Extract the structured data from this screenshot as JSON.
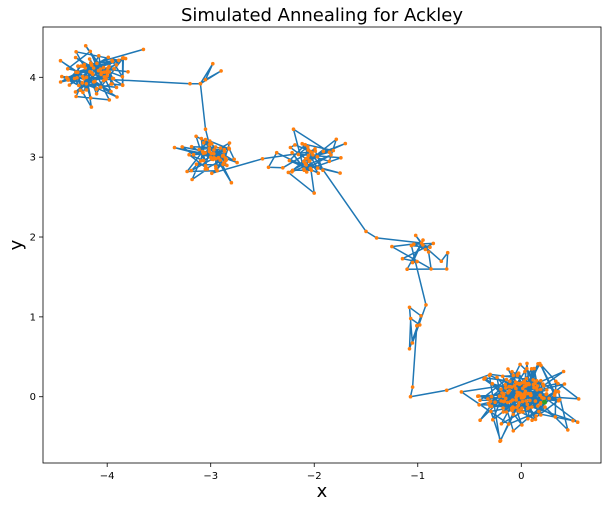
{
  "chart_data": {
    "type": "line",
    "title": "Simulated Annealing for Ackley",
    "xlabel": "x",
    "ylabel": "y",
    "xlim": [
      -4.62,
      0.77
    ],
    "ylim": [
      -0.83,
      4.63
    ],
    "xticks": [
      -4,
      -3,
      -2,
      -1,
      0
    ],
    "yticks": [
      0,
      1,
      2,
      3,
      4
    ],
    "xtick_labels": [
      "−4",
      "−3",
      "−2",
      "−1",
      "0"
    ],
    "ytick_labels": [
      "0",
      "1",
      "2",
      "3",
      "4"
    ],
    "grid": false,
    "line_color": "#1f77b4",
    "marker_color": "#ff7f0e",
    "final_marker_color": "#2ca02c",
    "clusters": [
      {
        "cx": -4.1,
        "cy": 4.02,
        "sx": 0.17,
        "sy": 0.15,
        "n": 40
      },
      {
        "cx": -3.0,
        "cy": 3.0,
        "sx": 0.12,
        "sy": 0.12,
        "n": 50
      },
      {
        "cx": -2.05,
        "cy": 3.0,
        "sx": 0.18,
        "sy": 0.15,
        "n": 35
      },
      {
        "cx": -0.98,
        "cy": 1.85,
        "sx": 0.12,
        "sy": 0.12,
        "n": 10
      },
      {
        "cx": -1.0,
        "cy": 0.95,
        "sx": 0.05,
        "sy": 0.12,
        "n": 8
      },
      {
        "cx": 0.0,
        "cy": 0.02,
        "sx": 0.2,
        "sy": 0.17,
        "n": 170
      }
    ],
    "series": [
      {
        "values": [
          {
            "x": -3.65,
            "y": 4.35
          },
          {
            "x": -3.95,
            "y": 4.2
          },
          {
            "x": -4.3,
            "y": 4.32
          },
          {
            "x": -4.2,
            "y": 4.0
          },
          {
            "x": -4.0,
            "y": 4.08
          },
          {
            "x": -4.38,
            "y": 3.98
          },
          {
            "x": -4.1,
            "y": 3.86
          },
          {
            "x": -4.3,
            "y": 3.76
          },
          {
            "x": -3.85,
            "y": 3.9
          },
          {
            "x": -4.15,
            "y": 4.15
          },
          {
            "x": -4.0,
            "y": 4.02
          },
          {
            "x": -3.2,
            "y": 3.92
          },
          {
            "x": -3.1,
            "y": 3.92
          },
          {
            "x": -2.98,
            "y": 4.17
          },
          {
            "x": -3.05,
            "y": 3.97
          },
          {
            "x": -2.9,
            "y": 4.08
          },
          {
            "x": -3.1,
            "y": 3.92
          },
          {
            "x": -3.05,
            "y": 3.35
          },
          {
            "x": -3.35,
            "y": 3.12
          },
          {
            "x": -3.0,
            "y": 3.0
          },
          {
            "x": -2.8,
            "y": 2.68
          },
          {
            "x": -3.18,
            "y": 2.72
          },
          {
            "x": -3.05,
            "y": 3.22
          },
          {
            "x": -2.85,
            "y": 2.97
          },
          {
            "x": -2.5,
            "y": 2.98
          },
          {
            "x": -2.05,
            "y": 2.95
          },
          {
            "x": -2.2,
            "y": 3.35
          },
          {
            "x": -1.7,
            "y": 3.17
          },
          {
            "x": -2.1,
            "y": 2.85
          },
          {
            "x": -2.0,
            "y": 2.55
          },
          {
            "x": -1.75,
            "y": 2.8
          },
          {
            "x": -1.5,
            "y": 2.07
          },
          {
            "x": -1.25,
            "y": 1.88
          },
          {
            "x": -1.02,
            "y": 2.02
          },
          {
            "x": -0.85,
            "y": 1.92
          },
          {
            "x": -1.05,
            "y": 1.68
          },
          {
            "x": -0.72,
            "y": 1.6
          },
          {
            "x": -0.95,
            "y": 1.9
          },
          {
            "x": -0.92,
            "y": 1.15
          },
          {
            "x": -1.08,
            "y": 1.12
          },
          {
            "x": -1.08,
            "y": 0.6
          },
          {
            "x": -0.98,
            "y": 0.9
          },
          {
            "x": -1.05,
            "y": 0.12
          },
          {
            "x": -1.07,
            "y": 0.0
          },
          {
            "x": -0.72,
            "y": 0.08
          },
          {
            "x": -0.3,
            "y": 0.28
          },
          {
            "x": 0.0,
            "y": 0.0
          },
          {
            "x": 0.15,
            "y": 0.2
          },
          {
            "x": 0.5,
            "y": -0.3
          },
          {
            "x": 0.1,
            "y": 0.35
          },
          {
            "x": -0.2,
            "y": -0.55
          },
          {
            "x": 0.0,
            "y": 0.02
          }
        ]
      }
    ]
  }
}
